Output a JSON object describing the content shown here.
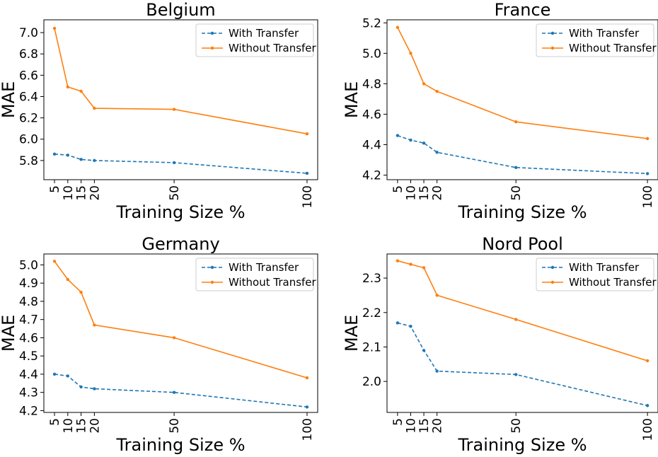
{
  "colors": {
    "with_transfer": "#1f77b4",
    "without_transfer": "#ff7f0e"
  },
  "chart_data": [
    {
      "type": "line",
      "title": "Belgium",
      "xlabel": "Training Size %",
      "ylabel": "MAE",
      "x": [
        5,
        10,
        15,
        20,
        50,
        100
      ],
      "x_ticks": [
        "5",
        "10",
        "15",
        "20",
        "50",
        "100"
      ],
      "y_ticks": [
        "5.8",
        "6.0",
        "6.2",
        "6.4",
        "6.6",
        "6.8",
        "7.0"
      ],
      "ylim": [
        5.62,
        7.12
      ],
      "legend_position": "upper right",
      "series": [
        {
          "name": "With Transfer",
          "style": "dashed",
          "values": [
            5.86,
            5.85,
            5.81,
            5.8,
            5.78,
            5.68
          ]
        },
        {
          "name": "Without Transfer",
          "style": "solid",
          "values": [
            7.04,
            6.49,
            6.45,
            6.29,
            6.28,
            6.05
          ]
        }
      ]
    },
    {
      "type": "line",
      "title": "France",
      "xlabel": "Training Size %",
      "ylabel": "MAE",
      "x": [
        5,
        10,
        15,
        20,
        50,
        100
      ],
      "x_ticks": [
        "5",
        "10",
        "15",
        "20",
        "50",
        "100"
      ],
      "y_ticks": [
        "4.2",
        "4.4",
        "4.6",
        "4.8",
        "5.0",
        "5.2"
      ],
      "ylim": [
        4.17,
        5.22
      ],
      "legend_position": "upper right",
      "series": [
        {
          "name": "With Transfer",
          "style": "dashed",
          "values": [
            4.46,
            4.43,
            4.41,
            4.35,
            4.25,
            4.21
          ]
        },
        {
          "name": "Without Transfer",
          "style": "solid",
          "values": [
            5.17,
            5.0,
            4.8,
            4.75,
            4.55,
            4.44
          ]
        }
      ]
    },
    {
      "type": "line",
      "title": "Germany",
      "xlabel": "Training Size %",
      "ylabel": "MAE",
      "x": [
        5,
        10,
        15,
        20,
        50,
        100
      ],
      "x_ticks": [
        "5",
        "10",
        "15",
        "20",
        "50",
        "100"
      ],
      "y_ticks": [
        "4.2",
        "4.3",
        "4.4",
        "4.5",
        "4.6",
        "4.7",
        "4.8",
        "4.9",
        "5.0"
      ],
      "ylim": [
        4.19,
        5.06
      ],
      "legend_position": "upper right",
      "series": [
        {
          "name": "With Transfer",
          "style": "dashed",
          "values": [
            4.4,
            4.39,
            4.33,
            4.32,
            4.3,
            4.22
          ]
        },
        {
          "name": "Without Transfer",
          "style": "solid",
          "values": [
            5.02,
            4.92,
            4.85,
            4.67,
            4.6,
            4.38
          ]
        }
      ]
    },
    {
      "type": "line",
      "title": "Nord Pool",
      "xlabel": "Training Size %",
      "ylabel": "MAE",
      "x": [
        5,
        10,
        15,
        20,
        50,
        100
      ],
      "x_ticks": [
        "5",
        "10",
        "15",
        "20",
        "50",
        "100"
      ],
      "y_ticks": [
        "2.0",
        "2.1",
        "2.2",
        "2.3"
      ],
      "ylim": [
        1.91,
        2.37
      ],
      "legend_position": "upper right",
      "series": [
        {
          "name": "With Transfer",
          "style": "dashed",
          "values": [
            2.17,
            2.16,
            2.09,
            2.03,
            2.02,
            1.93
          ]
        },
        {
          "name": "Without Transfer",
          "style": "solid",
          "values": [
            2.35,
            2.34,
            2.33,
            2.25,
            2.18,
            2.06
          ]
        }
      ]
    }
  ]
}
